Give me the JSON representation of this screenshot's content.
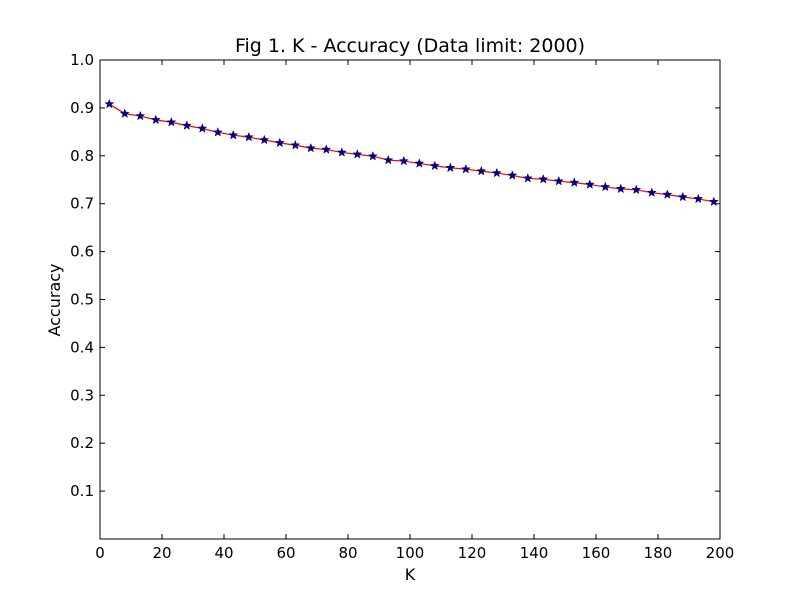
{
  "chart_data": {
    "type": "line",
    "title": "Fig 1. K - Accuracy (Data limit: 2000)",
    "xlabel": "K",
    "ylabel": "Accuracy",
    "xlim": [
      0,
      200
    ],
    "ylim": [
      0,
      1.0
    ],
    "xticks": [
      0,
      20,
      40,
      60,
      80,
      100,
      120,
      140,
      160,
      180,
      200
    ],
    "xtick_labels": [
      "0",
      "20",
      "40",
      "60",
      "80",
      "100",
      "120",
      "140",
      "160",
      "180",
      "200"
    ],
    "yticks": [
      0.1,
      0.2,
      0.3,
      0.4,
      0.5,
      0.6,
      0.7,
      0.8,
      0.9,
      1.0
    ],
    "ytick_labels": [
      "0.1",
      "0.2",
      "0.3",
      "0.4",
      "0.5",
      "0.6",
      "0.7",
      "0.8",
      "0.9",
      "1.0"
    ],
    "grid": false,
    "line_color": "#ff0000",
    "marker_color": "#000080",
    "marker": "star",
    "series": [
      {
        "x": [
          3,
          8,
          13,
          18,
          23,
          28,
          33,
          38,
          43,
          48,
          53,
          58,
          63,
          68,
          73,
          78,
          83,
          88,
          93,
          98,
          103,
          108,
          113,
          118,
          123,
          128,
          133,
          138,
          143,
          148,
          153,
          158,
          163,
          168,
          173,
          178,
          183,
          188,
          193,
          198
        ],
        "values": [
          0.908,
          0.888,
          0.883,
          0.875,
          0.87,
          0.863,
          0.857,
          0.849,
          0.843,
          0.839,
          0.833,
          0.827,
          0.822,
          0.816,
          0.813,
          0.807,
          0.803,
          0.799,
          0.791,
          0.789,
          0.784,
          0.779,
          0.775,
          0.772,
          0.768,
          0.764,
          0.759,
          0.753,
          0.751,
          0.747,
          0.744,
          0.74,
          0.735,
          0.731,
          0.729,
          0.723,
          0.719,
          0.714,
          0.71,
          0.704
        ]
      }
    ]
  }
}
